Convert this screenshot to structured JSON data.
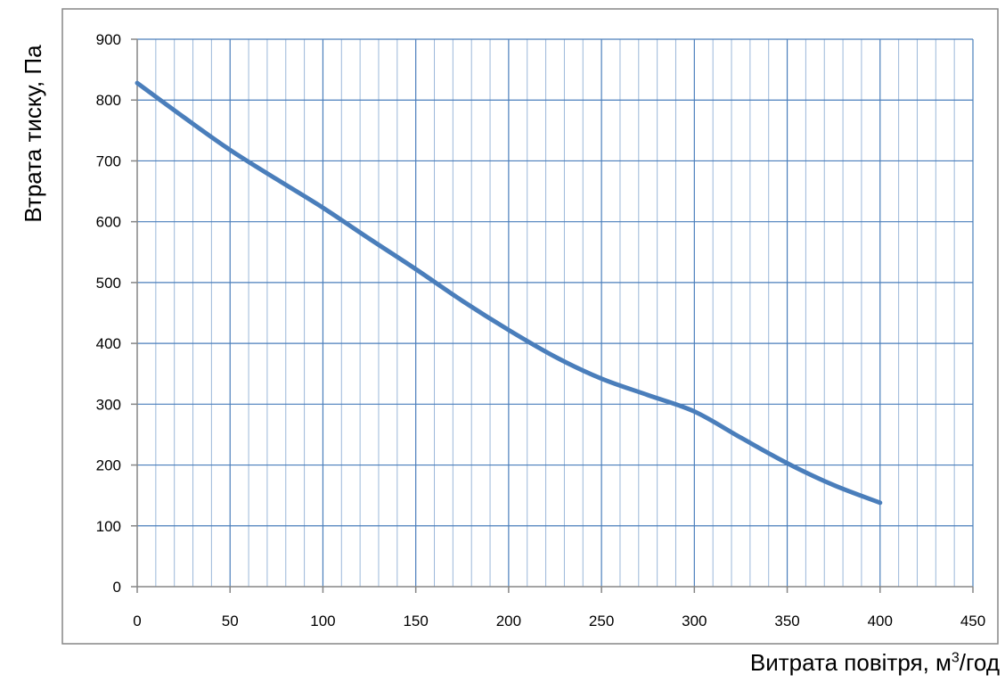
{
  "chart_data": {
    "type": "line",
    "title": "",
    "xlabel_prefix": "Витрата повітря, м",
    "xlabel_sup": "3",
    "xlabel_suffix": "/год",
    "ylabel": "Втрата тиску, Па",
    "xlim": [
      0,
      450
    ],
    "ylim": [
      0,
      900
    ],
    "x_ticks": [
      0,
      50,
      100,
      150,
      200,
      250,
      300,
      350,
      400,
      450
    ],
    "y_ticks": [
      0,
      100,
      200,
      300,
      400,
      500,
      600,
      700,
      800,
      900
    ],
    "x_minor_step": 10,
    "grid": true,
    "legend": "none",
    "series": [
      {
        "color": "#4a7ebb",
        "x": [
          0,
          25,
          50,
          75,
          100,
          125,
          150,
          175,
          200,
          225,
          250,
          275,
          300,
          325,
          350,
          375,
          400
        ],
        "y": [
          828,
          772,
          718,
          670,
          623,
          572,
          522,
          470,
          422,
          378,
          342,
          315,
          288,
          245,
          203,
          167,
          138
        ]
      }
    ]
  },
  "colors": {
    "grid": "#4a7ebb",
    "axis": "#868686",
    "frame": "#868686"
  }
}
